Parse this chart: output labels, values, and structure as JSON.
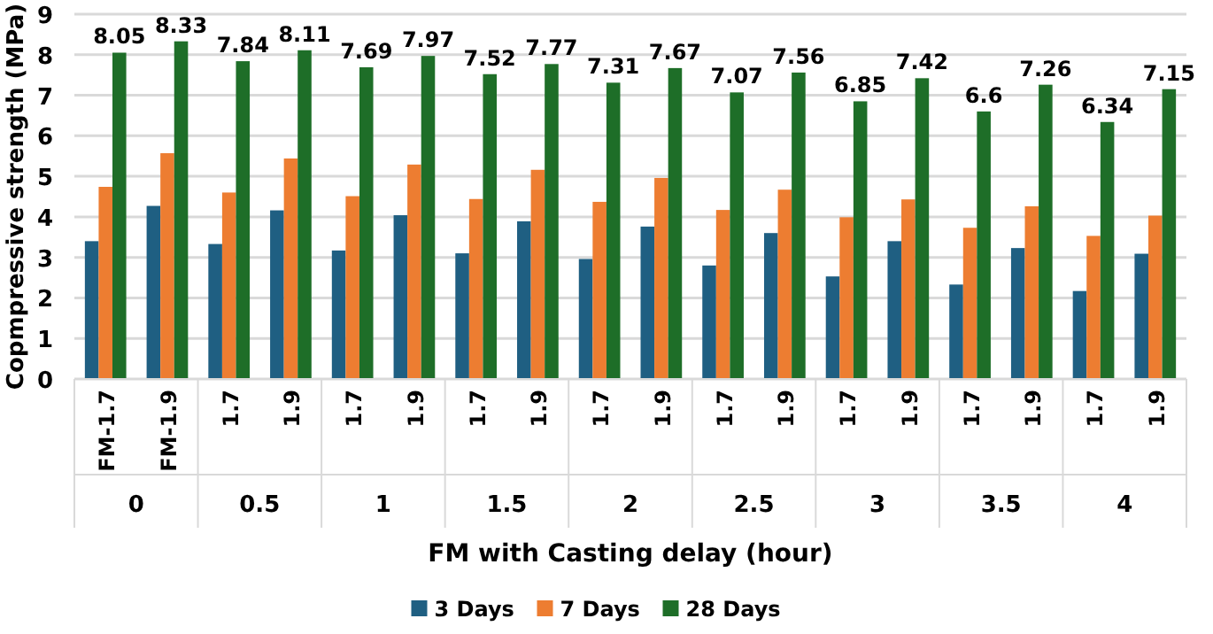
{
  "chart_data": {
    "type": "bar",
    "xlabel": "FM with Casting delay (hour)",
    "ylabel": "Copmpressive strength (MPa)",
    "categories": [
      "FM-1.7",
      "FM-1.9",
      "1.7",
      "1.9",
      "1.7",
      "1.9",
      "1.7",
      "1.9",
      "1.7",
      "1.9",
      "1.7",
      "1.9",
      "1.7",
      "1.9",
      "1.7",
      "1.9",
      "1.7",
      "1.9"
    ],
    "annotations": [
      "0",
      "0.5",
      "1",
      "1.5",
      "2",
      "2.5",
      "3",
      "3.5",
      "4"
    ],
    "series": [
      {
        "name": "3 Days",
        "color": "#1f5f82",
        "values": [
          3.4,
          4.27,
          3.33,
          4.16,
          3.17,
          4.04,
          3.1,
          3.89,
          2.96,
          3.76,
          2.8,
          3.6,
          2.53,
          3.4,
          2.33,
          3.23,
          2.17,
          3.09
        ]
      },
      {
        "name": "7 Days",
        "color": "#ed7d31",
        "values": [
          4.74,
          5.57,
          4.6,
          5.44,
          4.51,
          5.29,
          4.44,
          5.16,
          4.37,
          4.96,
          4.17,
          4.67,
          3.99,
          4.43,
          3.73,
          4.26,
          3.53,
          4.03
        ]
      },
      {
        "name": "28 Days",
        "color": "#1e6e28",
        "values": [
          8.05,
          8.33,
          7.84,
          8.11,
          7.69,
          7.97,
          7.52,
          7.77,
          7.31,
          7.67,
          7.07,
          7.56,
          6.85,
          7.42,
          6.6,
          7.26,
          6.34,
          7.15
        ],
        "value_labels": [
          "8.05",
          "8.33",
          "7.84",
          "8.11",
          "7.69",
          "7.97",
          "7.52",
          "7.77",
          "7.31",
          "7.67",
          "7.07",
          "7.56",
          "6.85",
          "7.42",
          "6.6",
          "7.26",
          "6.34",
          "7.15"
        ]
      }
    ],
    "ylim": [
      0,
      9
    ],
    "yticks": [
      0,
      1,
      2,
      3,
      4,
      5,
      6,
      7,
      8,
      9
    ],
    "grid": "y",
    "legend": "bottom"
  }
}
